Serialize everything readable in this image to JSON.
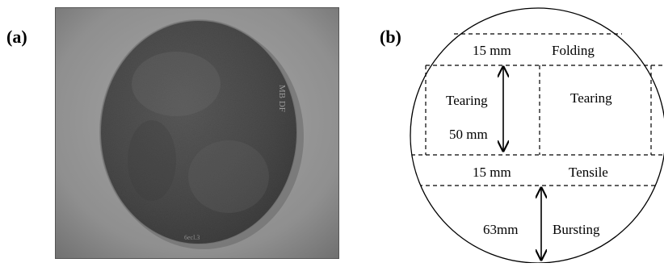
{
  "panels": {
    "a": {
      "label": "(a)"
    },
    "b": {
      "label": "(b)"
    }
  },
  "photo": {
    "sample_marking": "MB DF",
    "edge_text_bottom": "6ecl.3"
  },
  "diagram": {
    "strips": {
      "folding": {
        "width_label": "15 mm",
        "name": "Folding"
      },
      "tearing_left": {
        "name": "Tearing",
        "length_label": "50 mm"
      },
      "tearing_right": {
        "name": "Tearing"
      },
      "tensile": {
        "width_label": "15 mm",
        "name": "Tensile"
      },
      "bursting": {
        "length_label": "63mm",
        "name": "Bursting"
      }
    }
  },
  "colors": {
    "photo_bg": "#8a8a8a",
    "disc_dark": "#4a4a4a",
    "lines": "#000000"
  }
}
